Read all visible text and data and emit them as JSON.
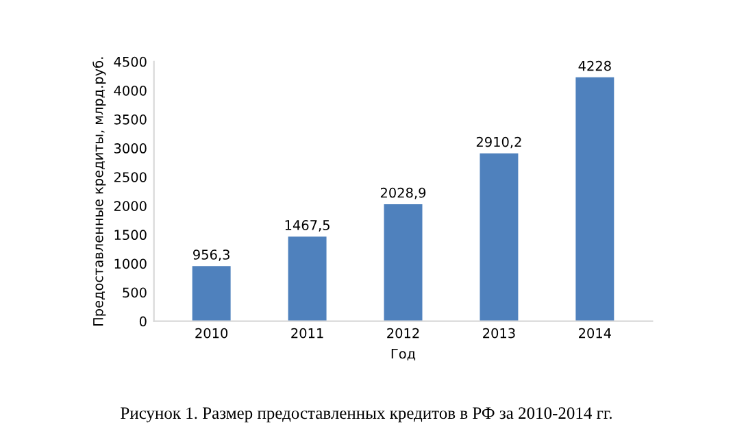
{
  "chart_data": {
    "type": "bar",
    "categories": [
      "2010",
      "2011",
      "2012",
      "2013",
      "2014"
    ],
    "values": [
      956.3,
      1467.5,
      2028.9,
      2910.2,
      4228
    ],
    "value_labels": [
      "956,3",
      "1467,5",
      "2028,9",
      "2910,2",
      "4228"
    ],
    "color": "#4f81bd",
    "xlabel": "Год",
    "ylabel": "Предоставленные кредиты, млрд.руб.",
    "ylim": [
      0,
      4500
    ],
    "yticks": [
      0,
      500,
      1000,
      1500,
      2000,
      2500,
      3000,
      3500,
      4000,
      4500
    ],
    "grid": false,
    "annotations": [
      "Рисунок 1. Размер предоставленных кредитов в РФ за 2010-2014 гг."
    ]
  }
}
